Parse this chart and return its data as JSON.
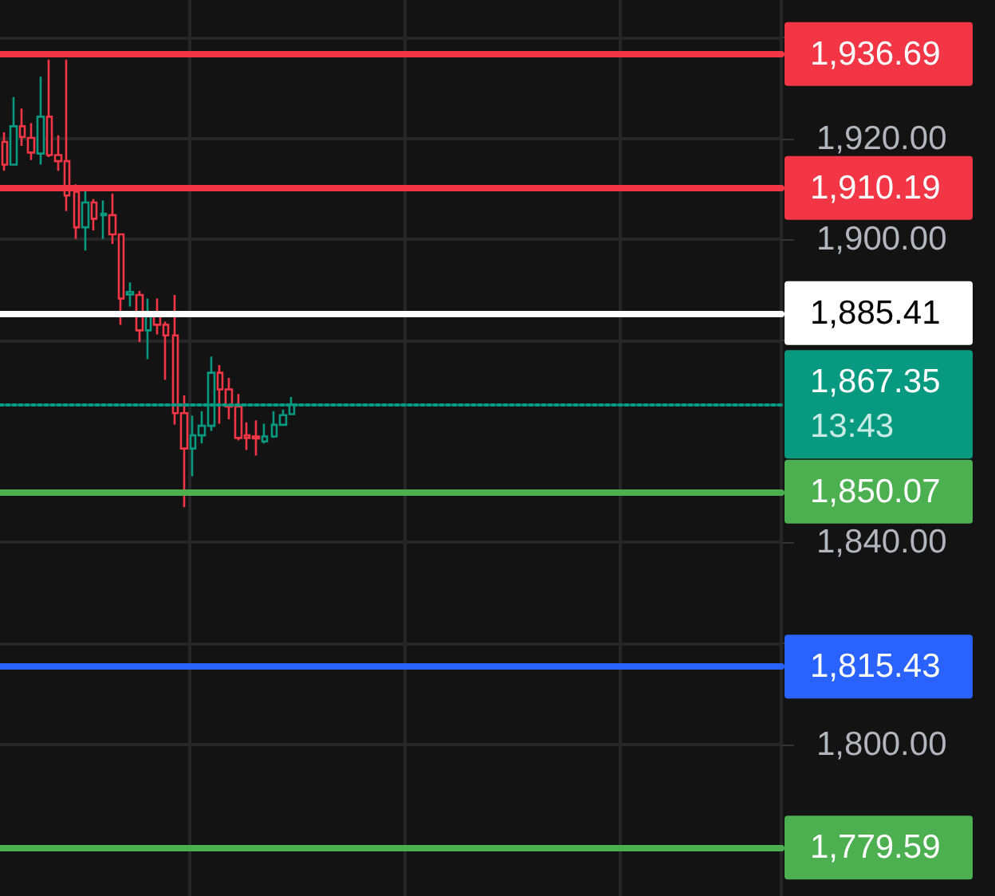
{
  "chart_data": {
    "type": "candlestick",
    "colors": [
      "#f23645",
      "#089981",
      "#f23645",
      "#f23645",
      "#089981",
      "#f23645",
      "#f23645",
      "#f23645",
      "#f23645",
      "#089981",
      "#f23645",
      "#089981",
      "#f23645",
      "#f23645",
      "#089981",
      "#f23645",
      "#089981",
      "#f23645",
      "#f23645",
      "#f23645",
      "#f23645",
      "#089981",
      "#089981",
      "#089981",
      "#f23645",
      "#f23645",
      "#f23645",
      "#f23645",
      "#f23645",
      "#089981",
      "#089981",
      "#089981",
      "#089981",
      null,
      null,
      null,
      null,
      null,
      null,
      null,
      null,
      null,
      null,
      null,
      null,
      null,
      null,
      null,
      null,
      null,
      null,
      null,
      null,
      null,
      null,
      null,
      null,
      null,
      null,
      null,
      null,
      null,
      null,
      null,
      null,
      null,
      null,
      null,
      null,
      null,
      null,
      null,
      null,
      null,
      null,
      null,
      null,
      null,
      null,
      null,
      null,
      null,
      null,
      null,
      null,
      null,
      null
    ],
    "categories": [
      null,
      null,
      null,
      null,
      null,
      null,
      null,
      null,
      null,
      null,
      null,
      null,
      null,
      null,
      null,
      null,
      null,
      null,
      null,
      null,
      null,
      null,
      null,
      null,
      null,
      null,
      null,
      null,
      null,
      null,
      null,
      null,
      null,
      null,
      null,
      null,
      null,
      null,
      null,
      null,
      null,
      null,
      null,
      null,
      null,
      null,
      null,
      null,
      null,
      null,
      null,
      null,
      null,
      null,
      null,
      null,
      null,
      null,
      null,
      null,
      null,
      null,
      null,
      null,
      null,
      null,
      null,
      null,
      null,
      null,
      null,
      null,
      null,
      null,
      null,
      null,
      null,
      null,
      null,
      null,
      null,
      null,
      null,
      null,
      null,
      null,
      null
    ],
    "ohlc": [
      [
        1919.3,
        1921.2,
        1913.6,
        1914.8
      ],
      [
        1914.8,
        1928.2,
        1914.8,
        1922.4
      ],
      [
        1922.4,
        1925.9,
        1918.5,
        1920.3
      ],
      [
        1920.1,
        1923.0,
        1915.7,
        1917.2
      ],
      [
        1917.0,
        1932.2,
        1914.8,
        1924.3
      ],
      [
        1924.3,
        1935.6,
        1916.3,
        1916.7
      ],
      [
        1916.7,
        1920.6,
        1913.6,
        1915.5
      ],
      [
        1915.5,
        1935.6,
        1905.6,
        1908.7
      ],
      [
        1909.4,
        1910.9,
        1900.1,
        1902.4
      ],
      [
        1902.4,
        1910.1,
        1897.8,
        1907.3
      ],
      [
        1907.3,
        1908.0,
        1901.8,
        1904.1
      ],
      [
        1904.8,
        1907.7,
        1900.1,
        1905.1
      ],
      [
        1904.8,
        1909.1,
        1899.1,
        1901.0
      ],
      [
        1901.0,
        1901.0,
        1883.1,
        1888.3
      ],
      [
        1889.1,
        1891.5,
        1886.7,
        1889.6
      ],
      [
        1889.0,
        1889.8,
        1879.7,
        1882.0
      ],
      [
        1882.0,
        1888.3,
        1876.3,
        1885.4
      ],
      [
        1885.4,
        1888.3,
        1881.2,
        1883.1
      ],
      [
        1883.1,
        1883.7,
        1872.2,
        1881.0
      ],
      [
        1881.0,
        1889.0,
        1863.3,
        1865.6
      ],
      [
        1865.6,
        1869.1,
        1847.0,
        1858.6
      ],
      [
        1858.6,
        1865.1,
        1853.1,
        1861.2
      ],
      [
        1861.2,
        1866.0,
        1859.6,
        1863.1
      ],
      [
        1863.1,
        1876.8,
        1862.1,
        1873.6
      ],
      [
        1873.6,
        1875.1,
        1863.5,
        1870.3
      ],
      [
        1870.3,
        1872.6,
        1864.4,
        1866.9
      ],
      [
        1866.9,
        1869.4,
        1860.2,
        1860.7
      ],
      [
        1861.2,
        1863.8,
        1858.3,
        1860.7
      ],
      [
        1861.0,
        1864.2,
        1857.2,
        1860.6
      ],
      [
        1860.0,
        1863.5,
        1859.6,
        1861.0
      ],
      [
        1861.0,
        1866.0,
        1860.7,
        1863.3
      ],
      [
        1863.3,
        1866.3,
        1863.3,
        1865.2
      ],
      [
        1865.4,
        1868.8,
        1865.2,
        1867.35
      ],
      null,
      null,
      null,
      null,
      null,
      null,
      null,
      null,
      null,
      null,
      null,
      null,
      null,
      null,
      null,
      null,
      null,
      null,
      null,
      null,
      null,
      null,
      null,
      null,
      null,
      null,
      null,
      null,
      null,
      null,
      null,
      null,
      null,
      null,
      null,
      null,
      null,
      null,
      null,
      null,
      null,
      null,
      null,
      null,
      null,
      null,
      null,
      null,
      null,
      null,
      null,
      null,
      null,
      null
    ],
    "ylim": [
      1770,
      1947.4
    ],
    "yticks": [
      {
        "value": 1800,
        "label": "1,800.00"
      },
      {
        "value": 1820,
        "label": null
      },
      {
        "value": 1840,
        "label": "1,840.00"
      },
      {
        "value": 1880,
        "label": null
      },
      {
        "value": 1900,
        "label": "1,900.00"
      },
      {
        "value": 1920,
        "label": "1,920.00"
      },
      {
        "value": 1940,
        "label": null
      }
    ],
    "grid": true,
    "ref_lines": [
      {
        "axis": "y",
        "value": 1936.69,
        "label": "1,936.69",
        "color": "#f23645"
      },
      {
        "axis": "y",
        "value": 1910.19,
        "label": "1,910.19",
        "color": "#f23645"
      },
      {
        "axis": "y",
        "value": 1885.41,
        "label": "1,885.41",
        "color": "#ffffff"
      },
      {
        "axis": "y",
        "value": 1867.35,
        "label": "1,867.35",
        "color": "#089981",
        "line_style": "dotted"
      },
      {
        "axis": "y",
        "value": 1850.07,
        "label": "1,850.07",
        "color": "#4caf50"
      },
      {
        "axis": "y",
        "value": 1815.43,
        "label": "1,815.43",
        "color": "#2962ff"
      },
      {
        "axis": "y",
        "value": 1779.59,
        "label": "1,779.59",
        "color": "#4caf50"
      }
    ],
    "annotations": [
      "13:43"
    ]
  }
}
